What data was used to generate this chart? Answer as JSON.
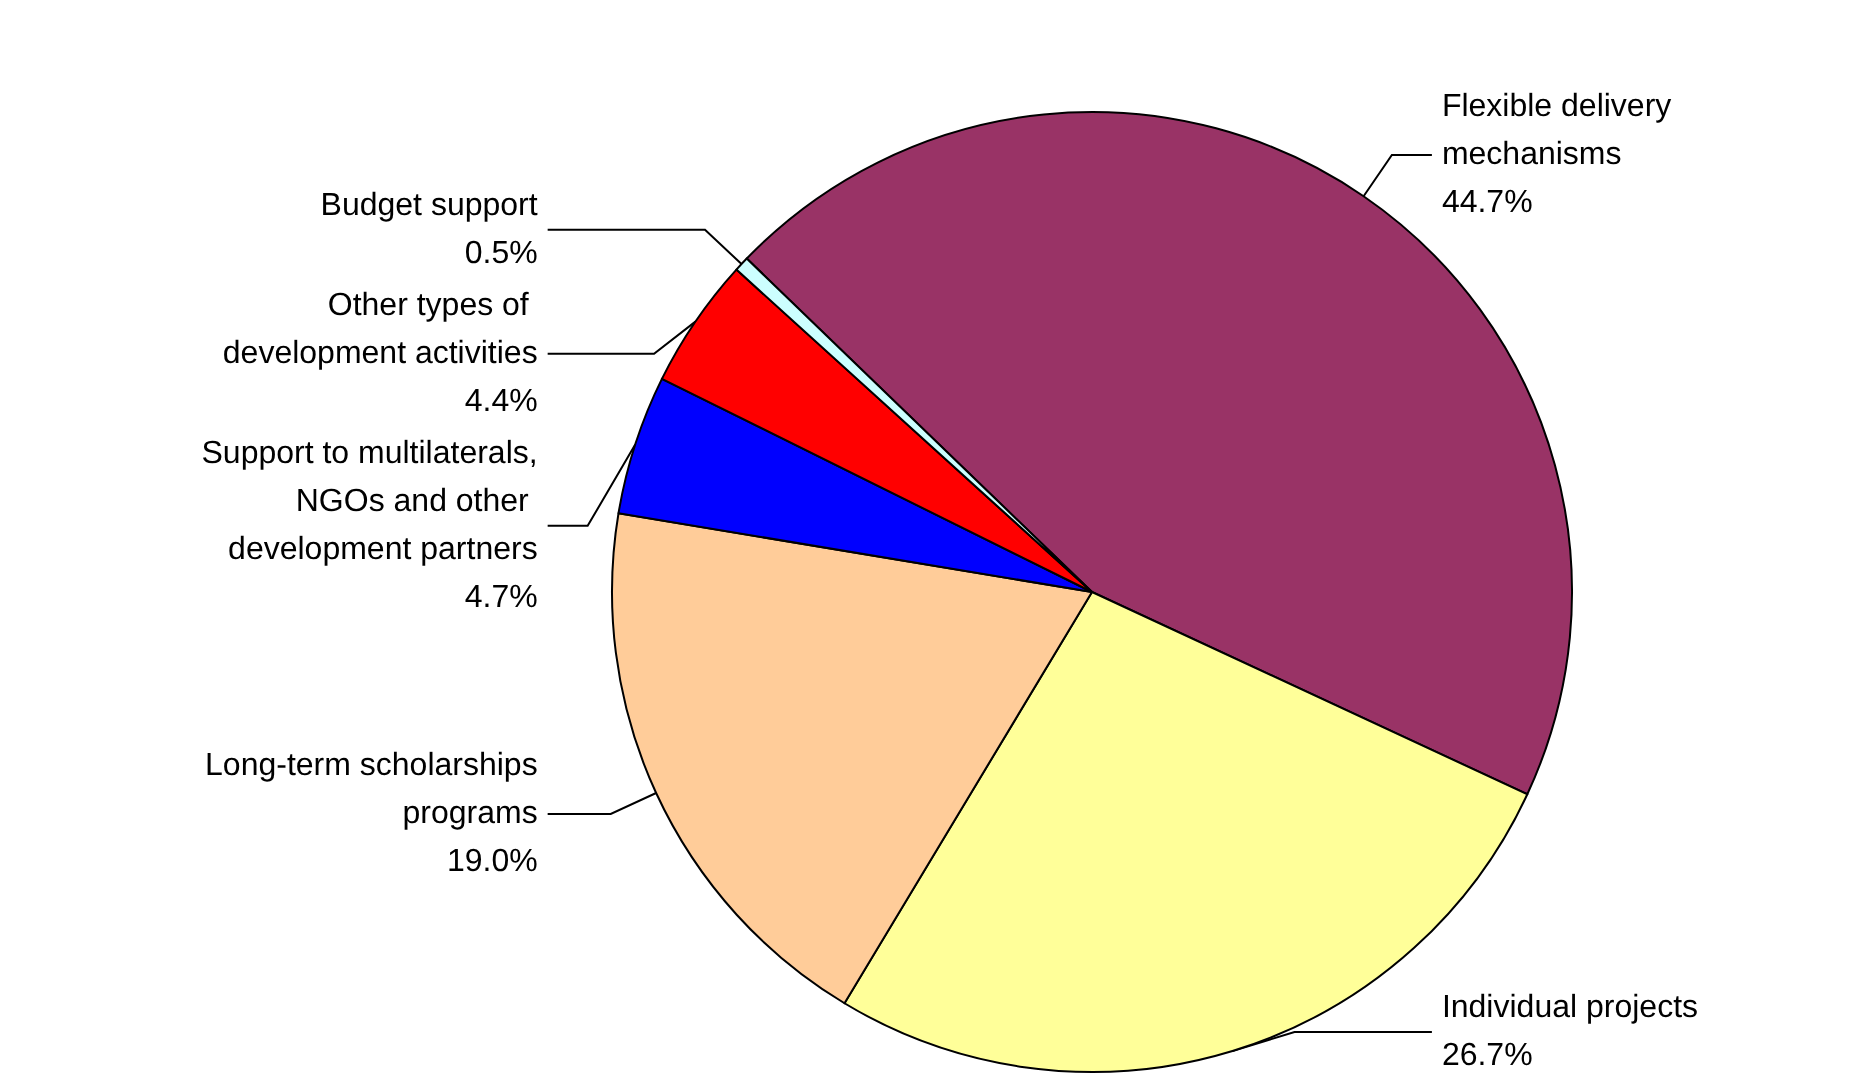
{
  "chart_data": {
    "type": "pie",
    "categories": [
      "Flexible delivery mechanisms",
      "Individual projects",
      "Long-term scholarships programs",
      "Support to multilaterals, NGOs and other development partners",
      "Other types of development activities",
      "Budget support"
    ],
    "values": [
      44.7,
      26.7,
      19.0,
      4.7,
      4.4,
      0.5
    ],
    "value_labels": [
      "44.7%",
      "26.7%",
      "19.0%",
      "4.7%",
      "4.4%",
      "0.5%"
    ],
    "colors": [
      "#993366",
      "#ffff99",
      "#ffcc99",
      "#0000ff",
      "#ff0000",
      "#ccffff"
    ]
  }
}
